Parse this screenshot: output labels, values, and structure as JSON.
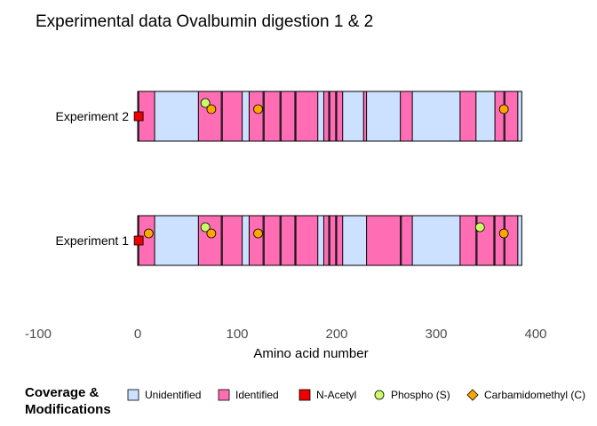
{
  "chart_data": {
    "type": "coverage",
    "title": "Experimental data Ovalbumin digestion 1 & 2",
    "xlabel": "Amino acid number",
    "xlim": [
      -100,
      400
    ],
    "xticks": [
      -100,
      0,
      100,
      200,
      300,
      400
    ],
    "xtick_labels": [
      "-100",
      "0",
      "100",
      "200",
      "300",
      "400"
    ],
    "protein_length": 386,
    "colors": {
      "unidentified": "#cce0ff",
      "identified": "#ff6eb4",
      "nacetyl": "#ee0000",
      "phospho": "#ccff66",
      "carbamidomethyl": "#ffa500"
    },
    "experiments": [
      {
        "name": "Experiment 2",
        "identified_segments": [
          [
            1,
            17
          ],
          [
            61,
            84
          ],
          [
            85,
            105
          ],
          [
            112,
            126
          ],
          [
            127,
            143
          ],
          [
            144,
            158
          ],
          [
            159,
            181
          ],
          [
            187,
            192
          ],
          [
            193,
            199
          ],
          [
            200,
            206
          ],
          [
            227,
            230
          ],
          [
            264,
            276
          ],
          [
            324,
            340
          ],
          [
            359,
            368
          ],
          [
            369,
            382
          ]
        ],
        "modifications": [
          {
            "type": "nacetyl",
            "position": 1
          },
          {
            "type": "phospho",
            "position": 68
          },
          {
            "type": "carbamidomethyl",
            "position": 74
          },
          {
            "type": "carbamidomethyl",
            "position": 121
          },
          {
            "type": "carbamidomethyl",
            "position": 368
          }
        ]
      },
      {
        "name": "Experiment 1",
        "identified_segments": [
          [
            1,
            17
          ],
          [
            61,
            84
          ],
          [
            85,
            105
          ],
          [
            112,
            126
          ],
          [
            127,
            143
          ],
          [
            144,
            158
          ],
          [
            159,
            181
          ],
          [
            187,
            192
          ],
          [
            193,
            199
          ],
          [
            200,
            206
          ],
          [
            230,
            264
          ],
          [
            265,
            276
          ],
          [
            324,
            340
          ],
          [
            341,
            358
          ],
          [
            359,
            368
          ],
          [
            369,
            382
          ]
        ],
        "modifications": [
          {
            "type": "nacetyl",
            "position": 1
          },
          {
            "type": "carbamidomethyl",
            "position": 11
          },
          {
            "type": "phospho",
            "position": 68
          },
          {
            "type": "carbamidomethyl",
            "position": 74
          },
          {
            "type": "carbamidomethyl",
            "position": 121
          },
          {
            "type": "phospho",
            "position": 344
          },
          {
            "type": "carbamidomethyl",
            "position": 368
          }
        ]
      }
    ],
    "legend": {
      "title_line1": "Coverage &",
      "title_line2": "Modifications",
      "position": "bottom",
      "items": [
        {
          "key": "unidentified",
          "shape": "square",
          "label": "Unidentified"
        },
        {
          "key": "identified",
          "shape": "square",
          "label": "Identified"
        },
        {
          "key": "nacetyl",
          "shape": "square",
          "label": "N-Acetyl"
        },
        {
          "key": "phospho",
          "shape": "circle",
          "label": "Phospho (S)"
        },
        {
          "key": "carbamidomethyl",
          "shape": "diamond",
          "label": "Carbamidomethyl (C)"
        }
      ]
    }
  }
}
